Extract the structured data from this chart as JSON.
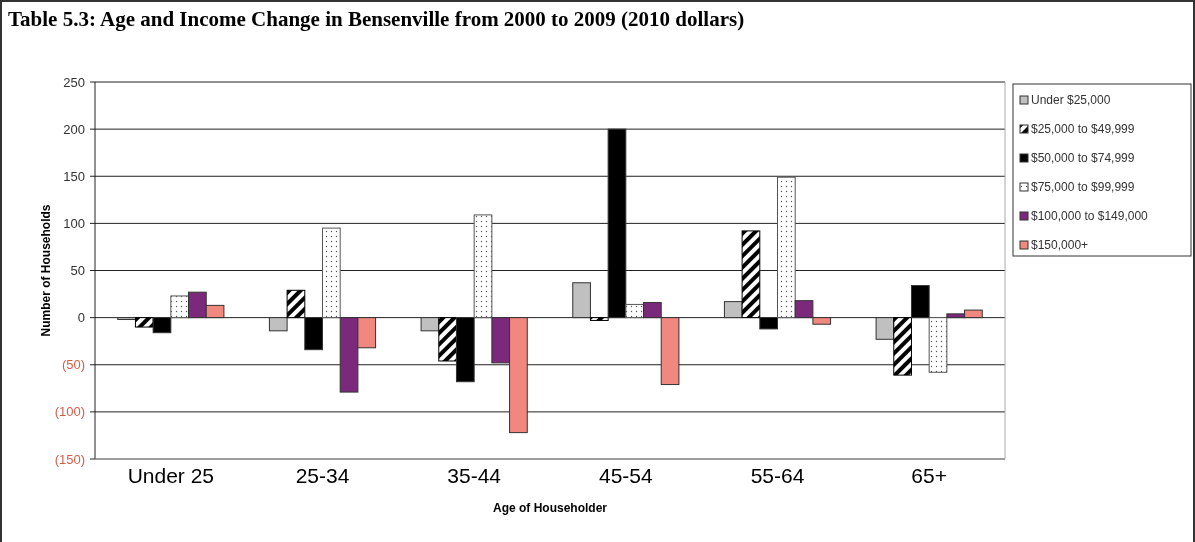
{
  "chart_data": {
    "type": "bar",
    "title": "Table 5.3: Age and Income Change in Bensenville from 2000 to 2009 (2010 dollars)",
    "xlabel": "Age of Householder",
    "ylabel": "Number of Households",
    "categories": [
      "Under 25",
      "25-34",
      "35-44",
      "45-54",
      "55-64",
      "65+"
    ],
    "series": [
      {
        "name": "Under $25,000",
        "color": "#c0c0c0",
        "values": [
          -2,
          -14,
          -14,
          37,
          17,
          -23
        ]
      },
      {
        "name": "$25,000 to $49,999",
        "color": "#000000",
        "values": [
          -10,
          29,
          -46,
          -3,
          92,
          -61
        ]
      },
      {
        "name": "$50,000 to $74,999",
        "color": "#000000",
        "values": [
          -16,
          -34,
          -68,
          200,
          -12,
          34
        ]
      },
      {
        "name": "$75,000 to $99,999",
        "color": "#555555",
        "values": [
          23,
          95,
          109,
          14,
          149,
          -58
        ]
      },
      {
        "name": "$100,000 to $149,000",
        "color": "#7b2a7b",
        "values": [
          27,
          -79,
          -48,
          16,
          18,
          4
        ]
      },
      {
        "name": "$150,000+",
        "color": "#f08880",
        "values": [
          13,
          -32,
          -122,
          -71,
          -7,
          8
        ]
      }
    ],
    "ylim": [
      -150,
      250
    ],
    "yticks": [
      {
        "value": -150,
        "label": "(150)"
      },
      {
        "value": -100,
        "label": "(100)"
      },
      {
        "value": -50,
        "label": "(50)"
      },
      0,
      50,
      100,
      150,
      200,
      250
    ],
    "grid": "y",
    "legend": "right"
  }
}
